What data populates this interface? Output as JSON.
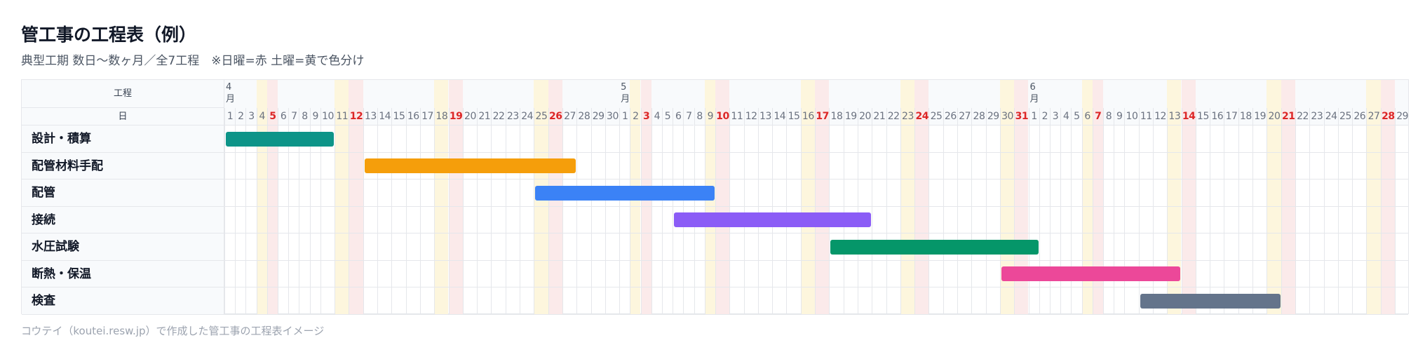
{
  "chart_data": {
    "type": "gantt",
    "title": "管工事の工程表（例）",
    "subtitle": "典型工期 数日〜数ヶ月／全7工程　※日曜=赤 土曜=黄で色分け",
    "footer": "コウテイ（koutei.resw.jp）で作成した管工事の工程表イメージ",
    "task_header": "工程",
    "day_header": "日",
    "month_unit": "月",
    "months": [
      {
        "month": 4,
        "days": [
          1,
          2,
          3,
          4,
          5,
          6,
          7,
          8,
          9,
          10,
          11,
          12,
          13,
          14,
          15,
          16,
          17,
          18,
          19,
          20,
          21,
          22,
          23,
          24,
          25,
          26,
          27,
          28,
          29,
          30
        ],
        "saturdays": [
          4,
          11,
          18,
          25
        ],
        "sundays": [
          5,
          12,
          19,
          26
        ]
      },
      {
        "month": 5,
        "days": [
          1,
          2,
          3,
          4,
          5,
          6,
          7,
          8,
          9,
          10,
          11,
          12,
          13,
          14,
          15,
          16,
          17,
          18,
          19,
          20,
          21,
          22,
          23,
          24,
          25,
          26,
          27,
          28,
          29,
          30,
          31
        ],
        "saturdays": [
          2,
          9,
          16,
          23,
          30
        ],
        "sundays": [
          3,
          10,
          17,
          24,
          31
        ]
      },
      {
        "month": 6,
        "days": [
          1,
          2,
          3,
          4,
          5,
          6,
          7,
          8,
          9,
          10,
          11,
          12,
          13,
          14,
          15,
          16,
          17,
          18,
          19,
          20,
          21,
          22,
          23,
          24,
          25,
          26,
          27,
          28,
          29
        ],
        "saturdays": [
          6,
          13,
          20,
          27
        ],
        "sundays": [
          7,
          14,
          21,
          28
        ]
      }
    ],
    "tasks": [
      {
        "name": "設計・積算",
        "color": "#0d9488",
        "start": [
          4,
          1
        ],
        "end": [
          4,
          10
        ]
      },
      {
        "name": "配管材料手配",
        "color": "#f59e0b",
        "start": [
          4,
          13
        ],
        "end": [
          4,
          27
        ]
      },
      {
        "name": "配管",
        "color": "#3b82f6",
        "start": [
          4,
          25
        ],
        "end": [
          5,
          9
        ]
      },
      {
        "name": "接続",
        "color": "#8b5cf6",
        "start": [
          5,
          6
        ],
        "end": [
          5,
          20
        ]
      },
      {
        "name": "水圧試験",
        "color": "#059669",
        "start": [
          5,
          18
        ],
        "end": [
          6,
          1
        ]
      },
      {
        "name": "断熱・保温",
        "color": "#ec4899",
        "start": [
          5,
          30
        ],
        "end": [
          6,
          13
        ]
      },
      {
        "name": "検査",
        "color": "#64748b",
        "start": [
          6,
          11
        ],
        "end": [
          6,
          20
        ]
      }
    ]
  }
}
